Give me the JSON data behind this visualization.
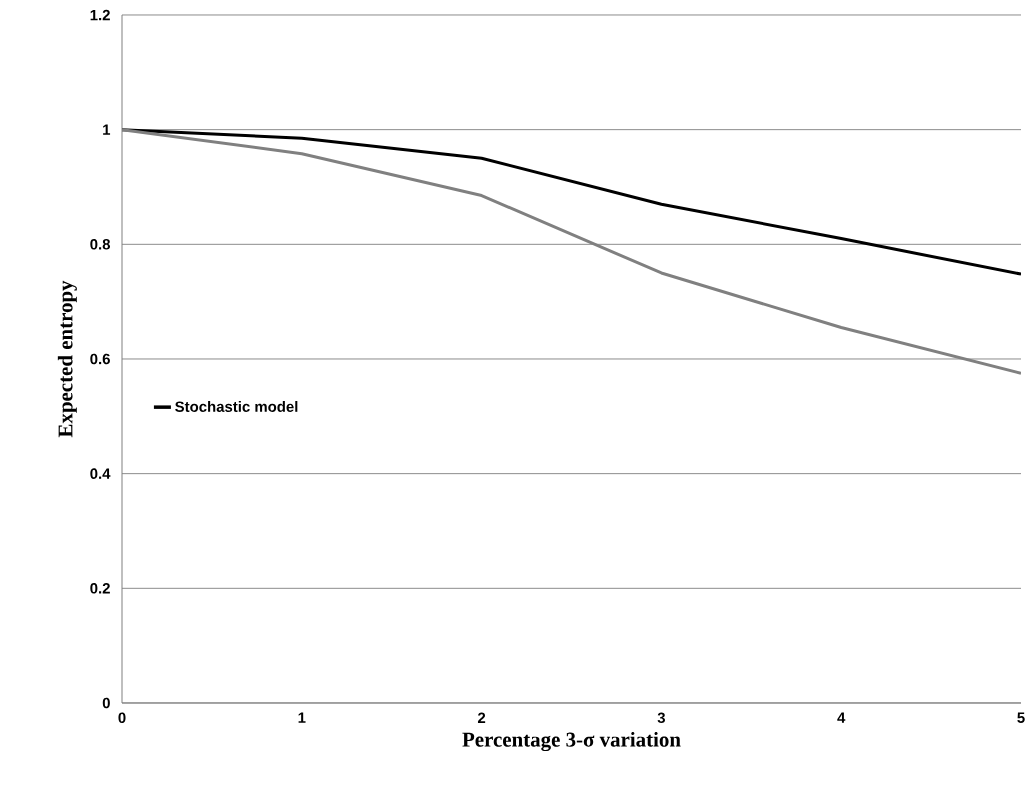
{
  "chart_data": {
    "type": "line",
    "xlabel": "Percentage 3-σ variation",
    "ylabel": "Expected entropy",
    "x": [
      0,
      1,
      2,
      3,
      4,
      5
    ],
    "series": [
      {
        "name": "Stochastic model",
        "color": "#000000",
        "values": [
          1,
          0.985,
          0.95,
          0.87,
          0.81,
          0.748
        ]
      },
      {
        "color": "#808080",
        "values": [
          1,
          0.958,
          0.885,
          0.75,
          0.655,
          0.575
        ]
      }
    ],
    "xlim": [
      0,
      5
    ],
    "xticks": [
      0,
      1,
      2,
      3,
      4,
      5
    ],
    "ylim": [
      0,
      1.2
    ],
    "yticks": [
      0,
      0.2,
      0.4,
      0.6,
      0.8,
      1,
      1.2
    ],
    "grid": "y",
    "legend": "left"
  }
}
